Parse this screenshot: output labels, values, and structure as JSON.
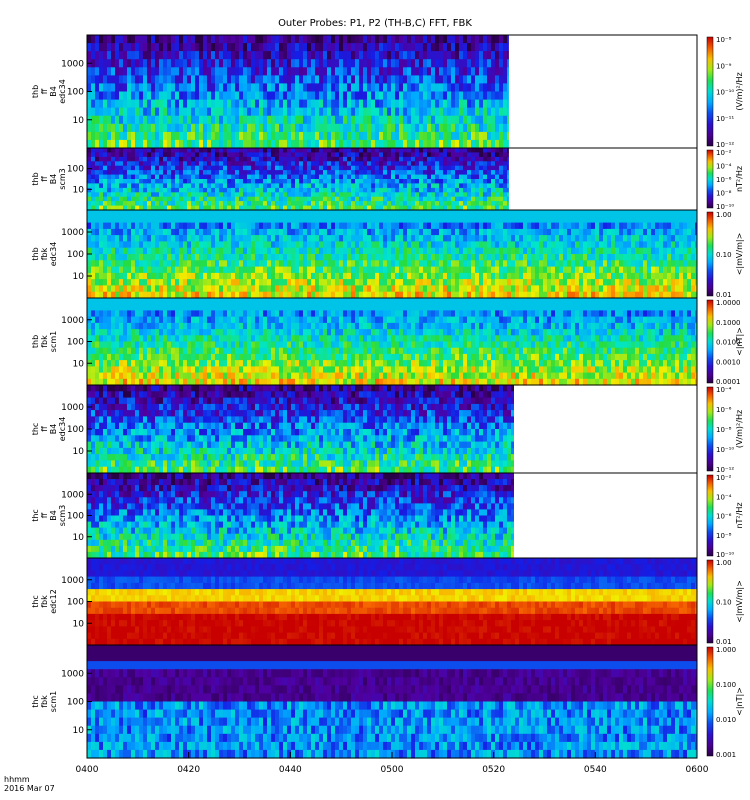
{
  "title": "Outer Probes: P1, P2 (TH-B,C) FFT, FBK",
  "corner": {
    "unit": "hhmm",
    "date": "2016 Mar 07"
  },
  "chart_data": {
    "type": "heatmap",
    "colormap": "rainbow (purple-blue-cyan-green-yellow-orange-red)",
    "x_ticks": [
      "0400",
      "0420",
      "0440",
      "0500",
      "0520",
      "0540",
      "0600"
    ],
    "panels": [
      {
        "label": [
          "thb",
          "ff",
          "B4",
          "edc34"
        ],
        "y_ticks": [
          "1000",
          "100",
          "10"
        ],
        "cbar_ticks": [
          "10⁻⁸",
          "10⁻⁹",
          "10⁻¹⁰",
          "10⁻¹¹",
          "10⁻¹²"
        ],
        "cbar_label": "(V/m)²/Hz",
        "data_end": "0523"
      },
      {
        "label": [
          "thb",
          "ff",
          "B4",
          "scm3"
        ],
        "y_ticks": [
          "100",
          "10"
        ],
        "cbar_ticks": [
          "10⁻²",
          "10⁻⁴",
          "10⁻⁶",
          "10⁻⁸",
          "10⁻¹⁰"
        ],
        "cbar_label": "nT²/Hz",
        "data_end": "0523"
      },
      {
        "label": [
          "thb",
          "fbk",
          "edc34"
        ],
        "y_ticks": [
          "1000",
          "100",
          "10"
        ],
        "cbar_ticks": [
          "1.00",
          "0.10",
          "0.01"
        ],
        "cbar_label": "<|mV/m|>",
        "data_end": "0600"
      },
      {
        "label": [
          "thb",
          "fbk",
          "scm1"
        ],
        "y_ticks": [
          "1000",
          "100",
          "10"
        ],
        "cbar_ticks": [
          "1.0000",
          "0.1000",
          "0.0100",
          "0.0010",
          "0.0001"
        ],
        "cbar_label": "<|nT|>",
        "data_end": "0600"
      },
      {
        "label": [
          "thc",
          "ff",
          "B4",
          "edc34"
        ],
        "y_ticks": [
          "1000",
          "100",
          "10"
        ],
        "cbar_ticks": [
          "10⁻⁴",
          "10⁻⁶",
          "10⁻⁸",
          "10⁻¹⁰",
          "10⁻¹²"
        ],
        "cbar_label": "(V/m)²/Hz",
        "data_end": "0524"
      },
      {
        "label": [
          "thc",
          "ff",
          "B4",
          "scm3"
        ],
        "y_ticks": [
          "1000",
          "100",
          "10"
        ],
        "cbar_ticks": [
          "10⁻²",
          "10⁻⁴",
          "10⁻⁶",
          "10⁻⁸",
          "10⁻¹⁰"
        ],
        "cbar_label": "nT²/Hz",
        "data_end": "0524"
      },
      {
        "label": [
          "thc",
          "fbk",
          "edc12"
        ],
        "y_ticks": [
          "1000",
          "100",
          "10"
        ],
        "cbar_ticks": [
          "1.00",
          "0.10",
          "0.01"
        ],
        "cbar_label": "<|mV/m|>",
        "data_end": "0600"
      },
      {
        "label": [
          "thc",
          "fbk",
          "scm1"
        ],
        "y_ticks": [
          "1000",
          "100",
          "10"
        ],
        "cbar_ticks": [
          "1.000",
          "0.100",
          "0.010",
          "0.001"
        ],
        "cbar_label": "<|nT|>",
        "data_end": "0600"
      }
    ]
  }
}
